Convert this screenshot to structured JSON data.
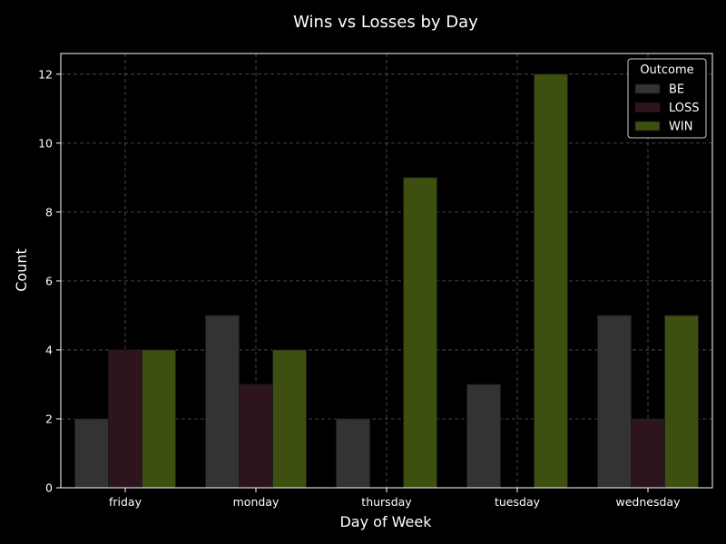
{
  "chart_data": {
    "type": "bar",
    "title": "Wins vs Losses by Day",
    "xlabel": "Day of Week",
    "ylabel": "Count",
    "categories": [
      "friday",
      "monday",
      "thursday",
      "tuesday",
      "wednesday"
    ],
    "series": [
      {
        "name": "BE",
        "values": [
          2,
          5,
          2,
          3,
          5
        ],
        "color": "#333333"
      },
      {
        "name": "LOSS",
        "values": [
          4,
          3,
          0,
          0,
          2
        ],
        "color": "#2e141d"
      },
      {
        "name": "WIN",
        "values": [
          4,
          4,
          9,
          12,
          5
        ],
        "color": "#3e5010"
      }
    ],
    "ylim": [
      0,
      12.6
    ],
    "yticks": [
      0,
      2,
      4,
      6,
      8,
      10,
      12
    ],
    "grid": true,
    "legend": {
      "title": "Outcome",
      "placement": "top-right"
    }
  },
  "colors": {
    "background": "#000000",
    "axes": "#ffffff",
    "grid": "#555555"
  }
}
